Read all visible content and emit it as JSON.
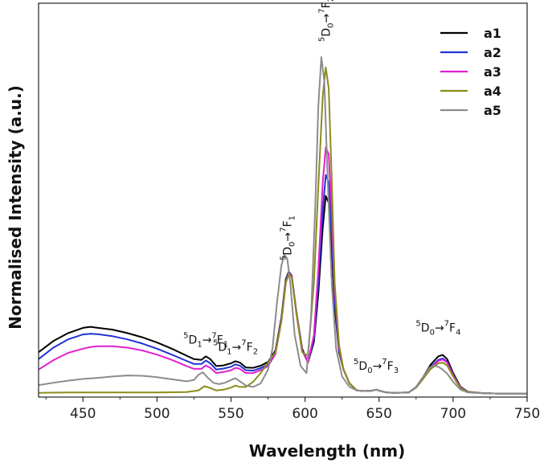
{
  "chart_data": {
    "type": "line",
    "xlabel": "Wavelength (nm)",
    "ylabel": "Normalised Intensity (a.u.)",
    "xlim": [
      420,
      750
    ],
    "ylim": [
      0,
      1
    ],
    "xticks": [
      450,
      500,
      550,
      600,
      650,
      700,
      750
    ],
    "series": [
      {
        "name": "a1",
        "color": "#000000",
        "x": [
          420,
          430,
          440,
          450,
          455,
          460,
          470,
          480,
          490,
          500,
          510,
          520,
          525,
          530,
          533,
          536,
          540,
          545,
          550,
          553,
          556,
          560,
          565,
          570,
          575,
          580,
          584,
          587,
          589,
          591,
          594,
          598,
          602,
          606,
          609,
          612,
          614,
          616,
          618,
          620,
          623,
          626,
          630,
          635,
          640,
          645,
          648,
          651,
          655,
          660,
          670,
          675,
          680,
          685,
          690,
          693,
          696,
          700,
          705,
          710,
          720,
          730,
          740,
          750
        ],
        "y": [
          0.12,
          0.152,
          0.175,
          0.19,
          0.193,
          0.19,
          0.185,
          0.175,
          0.163,
          0.148,
          0.13,
          0.11,
          0.1,
          0.098,
          0.108,
          0.1,
          0.08,
          0.082,
          0.088,
          0.094,
          0.09,
          0.076,
          0.075,
          0.081,
          0.092,
          0.125,
          0.22,
          0.33,
          0.352,
          0.34,
          0.24,
          0.13,
          0.09,
          0.15,
          0.29,
          0.48,
          0.57,
          0.55,
          0.42,
          0.25,
          0.12,
          0.07,
          0.03,
          0.01,
          0.008,
          0.009,
          0.012,
          0.008,
          0.004,
          0.003,
          0.004,
          0.02,
          0.05,
          0.085,
          0.108,
          0.112,
          0.1,
          0.06,
          0.02,
          0.006,
          0.002,
          0.001,
          0.001,
          0.001
        ]
      },
      {
        "name": "a2",
        "color": "#1f33d6",
        "x": [
          420,
          430,
          440,
          450,
          455,
          460,
          470,
          480,
          490,
          500,
          510,
          520,
          525,
          530,
          533,
          536,
          540,
          545,
          550,
          553,
          556,
          560,
          565,
          570,
          575,
          580,
          584,
          587,
          589,
          591,
          594,
          598,
          602,
          606,
          609,
          612,
          614,
          616,
          618,
          620,
          623,
          626,
          630,
          635,
          640,
          645,
          648,
          651,
          655,
          660,
          670,
          675,
          680,
          685,
          690,
          693,
          696,
          700,
          705,
          710,
          720,
          730,
          740,
          750
        ],
        "y": [
          0.1,
          0.133,
          0.157,
          0.171,
          0.173,
          0.172,
          0.166,
          0.157,
          0.145,
          0.13,
          0.113,
          0.095,
          0.086,
          0.086,
          0.096,
          0.088,
          0.07,
          0.073,
          0.078,
          0.085,
          0.081,
          0.068,
          0.067,
          0.074,
          0.085,
          0.12,
          0.215,
          0.325,
          0.35,
          0.338,
          0.238,
          0.125,
          0.09,
          0.16,
          0.32,
          0.53,
          0.63,
          0.61,
          0.46,
          0.27,
          0.125,
          0.07,
          0.03,
          0.01,
          0.008,
          0.009,
          0.012,
          0.008,
          0.004,
          0.003,
          0.004,
          0.018,
          0.045,
          0.078,
          0.098,
          0.102,
          0.092,
          0.055,
          0.018,
          0.005,
          0.002,
          0.001,
          0.001,
          0.001
        ]
      },
      {
        "name": "a3",
        "color": "#e020d0",
        "x": [
          420,
          430,
          440,
          450,
          455,
          460,
          470,
          480,
          490,
          500,
          510,
          520,
          525,
          530,
          533,
          536,
          540,
          545,
          550,
          553,
          556,
          560,
          565,
          570,
          575,
          580,
          584,
          587,
          589,
          591,
          594,
          598,
          602,
          606,
          609,
          612,
          614,
          616,
          618,
          620,
          623,
          626,
          630,
          635,
          640,
          645,
          648,
          651,
          655,
          660,
          670,
          675,
          680,
          685,
          690,
          693,
          696,
          700,
          705,
          710,
          720,
          730,
          740,
          750
        ],
        "y": [
          0.07,
          0.097,
          0.118,
          0.13,
          0.135,
          0.137,
          0.137,
          0.133,
          0.125,
          0.113,
          0.098,
          0.08,
          0.072,
          0.072,
          0.082,
          0.075,
          0.06,
          0.063,
          0.068,
          0.075,
          0.072,
          0.06,
          0.06,
          0.068,
          0.08,
          0.115,
          0.21,
          0.32,
          0.348,
          0.338,
          0.238,
          0.125,
          0.09,
          0.17,
          0.36,
          0.61,
          0.71,
          0.69,
          0.52,
          0.3,
          0.13,
          0.07,
          0.03,
          0.01,
          0.008,
          0.009,
          0.012,
          0.008,
          0.004,
          0.003,
          0.004,
          0.018,
          0.045,
          0.075,
          0.095,
          0.099,
          0.09,
          0.054,
          0.018,
          0.005,
          0.002,
          0.001,
          0.001,
          0.001
        ]
      },
      {
        "name": "a4",
        "color": "#8c8c1c",
        "x": [
          420,
          440,
          460,
          480,
          500,
          520,
          528,
          532,
          536,
          540,
          545,
          550,
          553,
          556,
          560,
          565,
          570,
          575,
          580,
          584,
          587,
          589,
          591,
          594,
          598,
          602,
          606,
          609,
          612,
          614,
          616,
          618,
          620,
          623,
          626,
          630,
          635,
          640,
          645,
          648,
          651,
          655,
          660,
          670,
          675,
          680,
          685,
          690,
          693,
          696,
          700,
          705,
          710,
          720,
          730,
          740,
          750
        ],
        "y": [
          0.003,
          0.004,
          0.004,
          0.004,
          0.004,
          0.005,
          0.01,
          0.022,
          0.017,
          0.01,
          0.012,
          0.018,
          0.024,
          0.02,
          0.02,
          0.035,
          0.06,
          0.09,
          0.12,
          0.21,
          0.32,
          0.345,
          0.335,
          0.235,
          0.12,
          0.11,
          0.32,
          0.6,
          0.86,
          0.94,
          0.88,
          0.62,
          0.32,
          0.14,
          0.07,
          0.03,
          0.01,
          0.008,
          0.009,
          0.012,
          0.008,
          0.004,
          0.003,
          0.004,
          0.018,
          0.045,
          0.072,
          0.088,
          0.09,
          0.082,
          0.05,
          0.016,
          0.005,
          0.002,
          0.001,
          0.001,
          0.001
        ]
      },
      {
        "name": "a5",
        "color": "#8c8c8c",
        "x": [
          420,
          430,
          440,
          450,
          460,
          470,
          480,
          490,
          500,
          510,
          520,
          525,
          528,
          531,
          534,
          538,
          542,
          546,
          550,
          553,
          556,
          560,
          565,
          570,
          575,
          578,
          581,
          584,
          586,
          588,
          590,
          593,
          597,
          601,
          604,
          607,
          609,
          611,
          613,
          615,
          618,
          621,
          625,
          630,
          635,
          640,
          645,
          648,
          651,
          655,
          660,
          670,
          675,
          680,
          684,
          687,
          690,
          693,
          696,
          700,
          705,
          710,
          720,
          730,
          740,
          750
        ],
        "y": [
          0.025,
          0.032,
          0.038,
          0.043,
          0.046,
          0.05,
          0.053,
          0.052,
          0.048,
          0.042,
          0.036,
          0.04,
          0.055,
          0.062,
          0.048,
          0.032,
          0.028,
          0.032,
          0.04,
          0.045,
          0.036,
          0.024,
          0.02,
          0.03,
          0.07,
          0.13,
          0.26,
          0.37,
          0.4,
          0.39,
          0.32,
          0.17,
          0.08,
          0.06,
          0.22,
          0.55,
          0.83,
          0.97,
          0.9,
          0.65,
          0.32,
          0.13,
          0.05,
          0.02,
          0.01,
          0.008,
          0.009,
          0.012,
          0.008,
          0.004,
          0.003,
          0.004,
          0.02,
          0.05,
          0.075,
          0.082,
          0.078,
          0.07,
          0.058,
          0.035,
          0.012,
          0.004,
          0.002,
          0.001,
          0.001,
          0.001
        ]
      }
    ],
    "annotations": [
      {
        "id": "d1f1",
        "upper": "5",
        "lower": "1",
        "mid": "D",
        "upper2": "7",
        "lower2": "1",
        "target": "F",
        "at_x": 533,
        "at_y": 0.135,
        "rotated": false
      },
      {
        "id": "d1f2",
        "upper": "5",
        "lower": "1",
        "mid": "D",
        "upper2": "7",
        "lower2": "2",
        "target": "F",
        "at_x": 553,
        "at_y": 0.115,
        "rotated": false
      },
      {
        "id": "d0f1",
        "upper": "5",
        "lower": "0",
        "mid": "D",
        "upper2": "7",
        "lower2": "1",
        "target": "F",
        "at_x": 588,
        "at_y": 0.37,
        "rotated": true
      },
      {
        "id": "d0f2",
        "upper": "5",
        "lower": "0",
        "mid": "D",
        "upper2": "7",
        "lower2": "2",
        "target": "F",
        "at_x": 614,
        "at_y": 1.0,
        "rotated": true
      },
      {
        "id": "d0f3",
        "upper": "5",
        "lower": "0",
        "mid": "D",
        "upper2": "7",
        "lower2": "3",
        "target": "F",
        "at_x": 648,
        "at_y": 0.06,
        "rotated": false
      },
      {
        "id": "d0f4",
        "upper": "5",
        "lower": "0",
        "mid": "D",
        "upper2": "7",
        "lower2": "4",
        "target": "F",
        "at_x": 690,
        "at_y": 0.17,
        "rotated": false
      }
    ],
    "arrow": "→",
    "legend_position": "top-right"
  }
}
